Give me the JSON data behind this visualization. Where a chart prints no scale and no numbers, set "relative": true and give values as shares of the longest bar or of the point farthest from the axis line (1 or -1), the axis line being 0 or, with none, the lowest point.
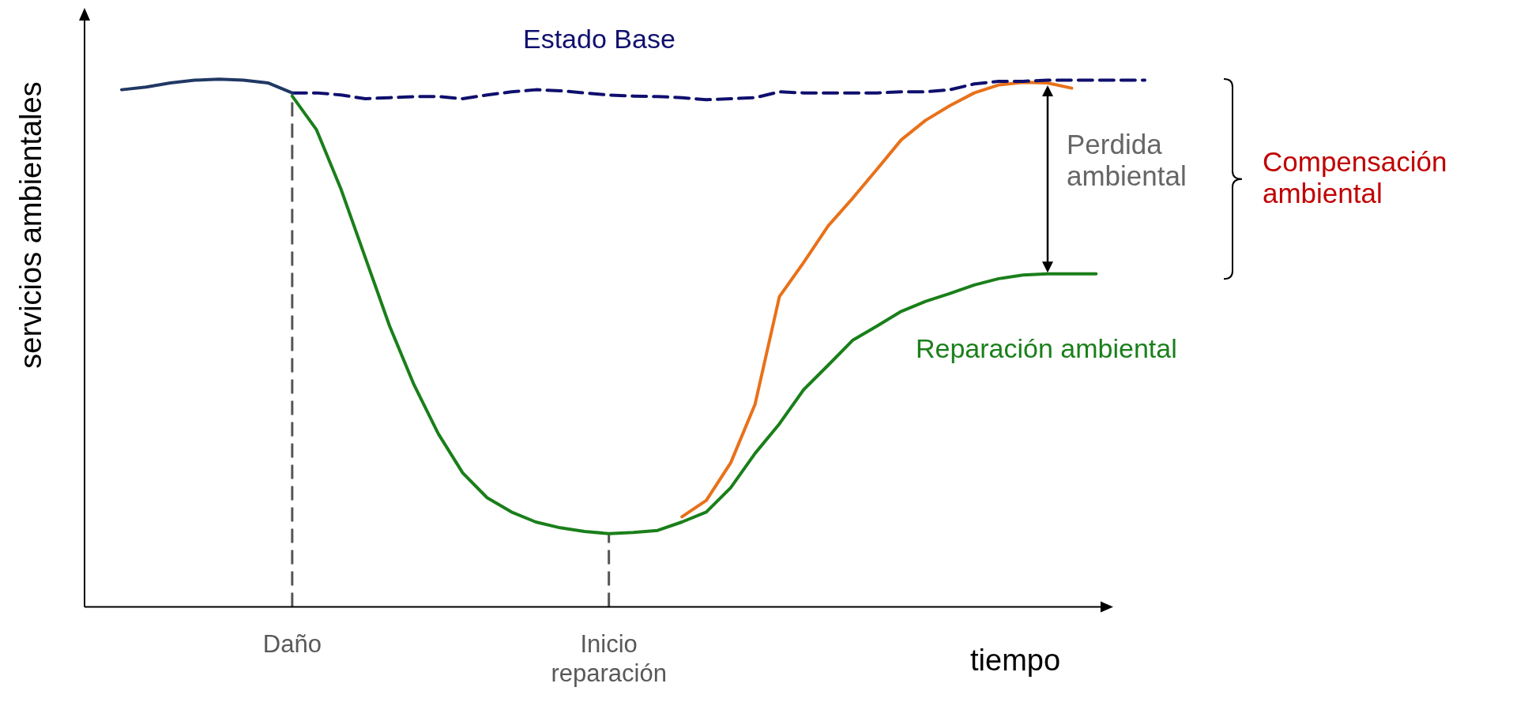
{
  "chart_data": {
    "type": "line",
    "relative": true,
    "xlabel": "tiempo",
    "ylabel": "servicios ambientales",
    "legend": false,
    "grid": false,
    "categories": [
      null,
      null,
      null,
      null,
      null,
      null,
      null,
      "Daño",
      null,
      null,
      null,
      null,
      null,
      null,
      null,
      null,
      null,
      null,
      null,
      null,
      "Inicio reparación",
      null,
      null,
      null,
      null,
      null,
      null,
      null,
      null,
      null,
      null,
      null,
      null,
      null,
      null,
      null,
      null,
      null,
      null,
      null,
      null,
      null,
      null
    ],
    "series": [
      {
        "color": "#203864",
        "line_style": "solid",
        "values": [
          0.98,
          0.985,
          0.993,
          0.998,
          1.0,
          0.998,
          0.993,
          0.974,
          null,
          null,
          null,
          null,
          null,
          null,
          null,
          null,
          null,
          null,
          null,
          null,
          null,
          null,
          null,
          null,
          null,
          null,
          null,
          null,
          null,
          null,
          null,
          null,
          null,
          null,
          null,
          null,
          null,
          null,
          null,
          null,
          null,
          null,
          null
        ]
      },
      {
        "name": "Estado Base",
        "color": "#0f0f6e",
        "line_style": "dashed",
        "values": [
          null,
          null,
          null,
          null,
          null,
          null,
          null,
          0.974,
          0.974,
          0.97,
          0.963,
          0.965,
          0.967,
          0.967,
          0.963,
          0.97,
          0.976,
          0.98,
          0.978,
          0.974,
          0.97,
          0.968,
          0.967,
          0.965,
          0.961,
          0.963,
          0.965,
          0.976,
          0.974,
          0.974,
          0.974,
          0.974,
          0.976,
          0.976,
          0.98,
          0.991,
          0.996,
          0.996,
          0.998,
          0.998,
          0.998,
          0.998,
          0.998
        ]
      },
      {
        "name": "Reparación ambiental",
        "color": "#1a7f1a",
        "line_style": "solid",
        "values": [
          null,
          null,
          null,
          null,
          null,
          null,
          null,
          0.968,
          0.904,
          0.792,
          0.662,
          0.532,
          0.421,
          0.328,
          0.254,
          0.207,
          0.18,
          0.161,
          0.15,
          0.143,
          0.139,
          0.141,
          0.145,
          0.161,
          0.18,
          0.226,
          0.291,
          0.347,
          0.412,
          0.458,
          0.505,
          0.532,
          0.56,
          0.579,
          0.594,
          0.61,
          0.622,
          0.629,
          0.631,
          0.631,
          0.631,
          null,
          null
        ]
      },
      {
        "color": "#e8711a",
        "line_style": "solid",
        "values": [
          null,
          null,
          null,
          null,
          null,
          null,
          null,
          null,
          null,
          null,
          null,
          null,
          null,
          null,
          null,
          null,
          null,
          null,
          null,
          null,
          null,
          null,
          null,
          0.171,
          0.202,
          0.273,
          0.384,
          0.588,
          0.653,
          0.722,
          0.774,
          0.829,
          0.885,
          0.922,
          0.95,
          0.974,
          0.989,
          0.994,
          0.993,
          0.983,
          null,
          null,
          null
        ]
      }
    ],
    "ref_lines": [
      {
        "axis": "x",
        "value": "Daño",
        "color": "#555555",
        "line_style": "dashed"
      },
      {
        "axis": "x",
        "value": "Inicio reparación",
        "color": "#555555",
        "line_style": "dashed"
      }
    ],
    "annotations": [
      "Perdida ambiental",
      "Compensación ambiental"
    ]
  }
}
